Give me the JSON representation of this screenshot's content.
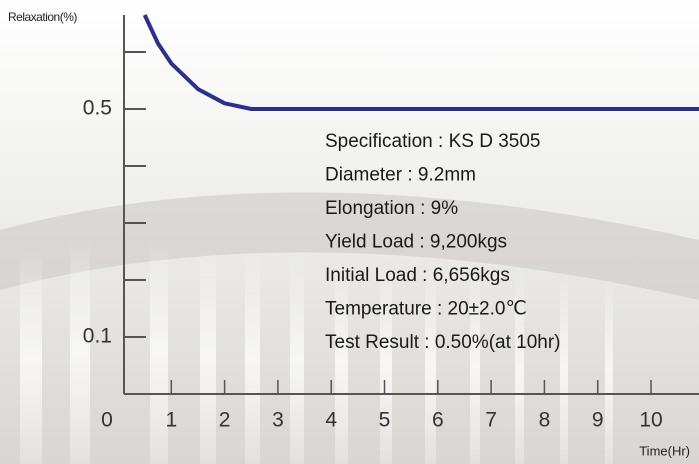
{
  "chart_data": {
    "type": "line",
    "y_label": "Relaxation(%)",
    "x_label": "Time(Hr)",
    "x": [
      0.5,
      0.75,
      1.0,
      1.5,
      2.0,
      2.5,
      10.9
    ],
    "values": [
      0.665,
      0.615,
      0.58,
      0.535,
      0.51,
      0.5,
      0.5
    ],
    "color": "#2b2f8f",
    "xlim": [
      0,
      10.9
    ],
    "ylim": [
      0,
      0.665
    ],
    "xticks": [
      0,
      1,
      2,
      3,
      4,
      5,
      6,
      7,
      8,
      9,
      10
    ],
    "yticks": [
      0.1,
      0.5
    ],
    "minor_yticks": [
      0.2,
      0.3,
      0.4,
      0.6
    ],
    "annotations": [
      "Specification : KS D 3505",
      "Diameter : 9.2mm",
      "Elongation : 9%",
      "Yield Load : 9,200kgs",
      "Initial Load : 6,656kgs",
      "Temperature : 20±2.0℃",
      "Test Result : 0.50%(at 10hr)"
    ]
  }
}
